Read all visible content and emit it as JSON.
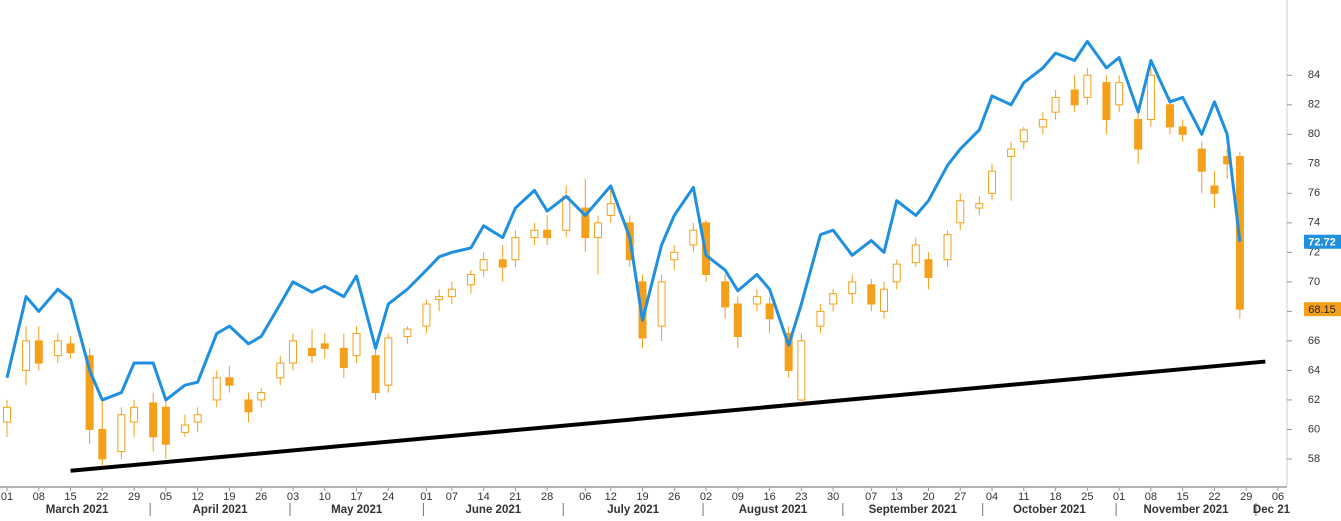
{
  "chart_data": {
    "type": "candlestick",
    "x": [
      "2021-03-01",
      "2021-03-04",
      "2021-03-08",
      "2021-03-11",
      "2021-03-15",
      "2021-03-18",
      "2021-03-22",
      "2021-03-25",
      "2021-03-29",
      "2021-04-01",
      "2021-04-05",
      "2021-04-08",
      "2021-04-12",
      "2021-04-15",
      "2021-04-19",
      "2021-04-22",
      "2021-04-26",
      "2021-04-29",
      "2021-05-03",
      "2021-05-06",
      "2021-05-10",
      "2021-05-13",
      "2021-05-17",
      "2021-05-20",
      "2021-05-24",
      "2021-05-27",
      "2021-06-01",
      "2021-06-03",
      "2021-06-07",
      "2021-06-10",
      "2021-06-14",
      "2021-06-17",
      "2021-06-21",
      "2021-06-24",
      "2021-06-28",
      "2021-07-01",
      "2021-07-06",
      "2021-07-08",
      "2021-07-12",
      "2021-07-15",
      "2021-07-19",
      "2021-07-22",
      "2021-07-26",
      "2021-07-29",
      "2021-08-02",
      "2021-08-05",
      "2021-08-09",
      "2021-08-12",
      "2021-08-16",
      "2021-08-19",
      "2021-08-23",
      "2021-08-26",
      "2021-08-30",
      "2021-09-02",
      "2021-09-07",
      "2021-09-09",
      "2021-09-13",
      "2021-09-16",
      "2021-09-20",
      "2021-09-23",
      "2021-09-27",
      "2021-09-30",
      "2021-10-04",
      "2021-10-07",
      "2021-10-11",
      "2021-10-14",
      "2021-10-18",
      "2021-10-21",
      "2021-10-25",
      "2021-10-28",
      "2021-11-01",
      "2021-11-04",
      "2021-11-08",
      "2021-11-11",
      "2021-11-15",
      "2021-11-18",
      "2021-11-22",
      "2021-11-24",
      "2021-11-26"
    ],
    "candles": {
      "color": "#f5a01a",
      "open": [
        60.5,
        64,
        66,
        65,
        65.8,
        65,
        60,
        58.5,
        60.5,
        61.8,
        61.5,
        59.8,
        60.5,
        62,
        63.5,
        62,
        62,
        63.5,
        64.5,
        65.5,
        65.8,
        65.5,
        65,
        65,
        63,
        66.3,
        67,
        68.8,
        69,
        69.8,
        70.8,
        71.5,
        71.5,
        73,
        73.5,
        73.5,
        75,
        73,
        74.5,
        74,
        70,
        67,
        71.5,
        72.5,
        74,
        70,
        68.5,
        68.5,
        68.5,
        66.5,
        62,
        67,
        68.5,
        69.2,
        69.8,
        68,
        70,
        71.3,
        71.5,
        71.5,
        74,
        75,
        76,
        78.5,
        79.5,
        80.5,
        81.5,
        83,
        82.5,
        83.5,
        82,
        81,
        81,
        82,
        80.5,
        79,
        76.5,
        78.5,
        78.5
      ],
      "high": [
        62,
        67,
        67,
        66.5,
        66.3,
        65.5,
        62,
        61.5,
        62,
        62.5,
        62,
        61,
        61.5,
        64,
        64.3,
        62.5,
        62.8,
        65,
        66.5,
        66.8,
        66.5,
        66.5,
        67,
        65.5,
        66.5,
        67,
        68.8,
        69.5,
        70,
        70.8,
        72,
        72.5,
        73.5,
        74,
        74.5,
        76.5,
        77,
        74.5,
        76.5,
        74.5,
        70.5,
        70.5,
        72.5,
        74,
        74.2,
        70.5,
        69,
        69.5,
        69,
        67,
        66.5,
        68.5,
        69.5,
        70.5,
        70.2,
        70,
        71.5,
        73,
        72,
        73.5,
        76,
        75.8,
        78,
        79.5,
        80.5,
        81.5,
        83,
        84,
        84.5,
        84,
        84,
        81.5,
        84.5,
        82.5,
        81,
        79.5,
        77.5,
        79,
        78.8
      ],
      "low": [
        59.5,
        63,
        64,
        64.5,
        64.8,
        59,
        57.5,
        58,
        59.5,
        58.5,
        58,
        59.5,
        59.8,
        61.5,
        62.5,
        60.5,
        61.5,
        63,
        64,
        64.5,
        64.8,
        63.5,
        64.5,
        62,
        62.5,
        65.8,
        66.5,
        68,
        68.5,
        69.2,
        70.3,
        70,
        71,
        72.5,
        72.5,
        73,
        72,
        70.5,
        74,
        71,
        65.5,
        66,
        70.8,
        72,
        70,
        67.5,
        65.5,
        68,
        66.5,
        63.5,
        61.8,
        66.5,
        68,
        68.5,
        68,
        67.5,
        69.5,
        71,
        69.5,
        71,
        73.5,
        74.5,
        75.5,
        75.5,
        79,
        80,
        81,
        81.5,
        82,
        80,
        81.5,
        78,
        80.5,
        80,
        79.5,
        76,
        75,
        77,
        67.5
      ],
      "close": [
        61.5,
        66,
        64.5,
        66,
        65.2,
        60,
        58,
        61,
        61.5,
        59.5,
        59,
        60.3,
        61,
        63.5,
        63,
        61.2,
        62.5,
        64.5,
        66,
        65,
        65.5,
        64.2,
        66.5,
        62.5,
        66.2,
        66.8,
        68.5,
        69,
        69.5,
        70.5,
        71.5,
        71,
        73,
        73.5,
        73,
        75.8,
        73,
        74,
        75.3,
        71.5,
        66.2,
        70,
        72,
        73.5,
        70.5,
        68.3,
        66.3,
        69,
        67.5,
        64,
        66,
        68,
        69.2,
        70,
        68.5,
        69.5,
        71.2,
        72.5,
        70.3,
        73.2,
        75.5,
        75.3,
        77.5,
        79,
        80.3,
        81,
        82.5,
        82,
        84,
        81,
        83.5,
        79,
        84,
        80.5,
        80,
        77.5,
        76,
        78,
        68.15
      ]
    },
    "line": {
      "color": "#1e8fe1",
      "values": [
        63.5,
        69,
        68,
        69.5,
        68.8,
        64,
        62,
        62.5,
        64.5,
        64.5,
        62,
        63,
        63.2,
        66.5,
        67,
        65.8,
        66.3,
        68.5,
        70,
        69.3,
        69.7,
        69,
        70.4,
        65.5,
        68.5,
        69.5,
        70.8,
        71.7,
        72,
        72.3,
        73.8,
        73,
        75,
        76.2,
        74.8,
        75.8,
        74.5,
        75.5,
        76.5,
        73,
        67.4,
        72.5,
        74.5,
        76.4,
        71.8,
        70.8,
        69.4,
        70.5,
        69.5,
        65.7,
        68.5,
        73.2,
        73.5,
        71.8,
        72.8,
        72,
        75.5,
        74.5,
        75.5,
        77.9,
        79,
        80.3,
        82.6,
        82,
        83.5,
        84.5,
        85.5,
        85,
        86.3,
        84.5,
        85.2,
        81.5,
        85,
        82.2,
        82.5,
        80,
        82.2,
        80,
        72.72
      ]
    },
    "trendline": {
      "color": "#000000",
      "x": [
        "2021-03-15",
        "2021-12-02"
      ],
      "values": [
        57.2,
        64.6
      ]
    },
    "xlim": [
      "2021-03-01",
      "2021-12-06"
    ],
    "xticks": [
      {
        "value": "2021-03-01",
        "label": "01"
      },
      {
        "value": "2021-03-08",
        "label": "08"
      },
      {
        "value": "2021-03-15",
        "label": "15"
      },
      {
        "value": "2021-03-22",
        "label": "22"
      },
      {
        "value": "2021-03-29",
        "label": "29"
      },
      {
        "value": "2021-04-05",
        "label": "05"
      },
      {
        "value": "2021-04-12",
        "label": "12"
      },
      {
        "value": "2021-04-19",
        "label": "19"
      },
      {
        "value": "2021-04-26",
        "label": "26"
      },
      {
        "value": "2021-05-03",
        "label": "03"
      },
      {
        "value": "2021-05-10",
        "label": "10"
      },
      {
        "value": "2021-05-17",
        "label": "17"
      },
      {
        "value": "2021-05-24",
        "label": "24"
      },
      {
        "value": "2021-06-01",
        "label": "01"
      },
      {
        "value": "2021-06-07",
        "label": "07"
      },
      {
        "value": "2021-06-14",
        "label": "14"
      },
      {
        "value": "2021-06-21",
        "label": "21"
      },
      {
        "value": "2021-06-28",
        "label": "28"
      },
      {
        "value": "2021-07-06",
        "label": "06"
      },
      {
        "value": "2021-07-12",
        "label": "12"
      },
      {
        "value": "2021-07-19",
        "label": "19"
      },
      {
        "value": "2021-07-26",
        "label": "26"
      },
      {
        "value": "2021-08-02",
        "label": "02"
      },
      {
        "value": "2021-08-09",
        "label": "09"
      },
      {
        "value": "2021-08-16",
        "label": "16"
      },
      {
        "value": "2021-08-23",
        "label": "23"
      },
      {
        "value": "2021-08-30",
        "label": "30"
      },
      {
        "value": "2021-09-07",
        "label": "07"
      },
      {
        "value": "2021-09-13",
        "label": "13"
      },
      {
        "value": "2021-09-20",
        "label": "20"
      },
      {
        "value": "2021-09-27",
        "label": "27"
      },
      {
        "value": "2021-10-04",
        "label": "04"
      },
      {
        "value": "2021-10-11",
        "label": "11"
      },
      {
        "value": "2021-10-18",
        "label": "18"
      },
      {
        "value": "2021-10-25",
        "label": "25"
      },
      {
        "value": "2021-11-01",
        "label": "01"
      },
      {
        "value": "2021-11-08",
        "label": "08"
      },
      {
        "value": "2021-11-15",
        "label": "15"
      },
      {
        "value": "2021-11-22",
        "label": "22"
      },
      {
        "value": "2021-11-29",
        "label": "29"
      },
      {
        "value": "2021-12-06",
        "label": "06"
      }
    ],
    "month_labels": [
      {
        "value": "2021-03",
        "label": "March 2021"
      },
      {
        "value": "2021-04",
        "label": "April 2021"
      },
      {
        "value": "2021-05",
        "label": "May 2021"
      },
      {
        "value": "2021-06",
        "label": "June 2021"
      },
      {
        "value": "2021-07",
        "label": "July 2021"
      },
      {
        "value": "2021-08",
        "label": "August 2021"
      },
      {
        "value": "2021-09",
        "label": "September 2021"
      },
      {
        "value": "2021-10",
        "label": "October 2021"
      },
      {
        "value": "2021-11",
        "label": "November 2021"
      },
      {
        "value": "2021-12",
        "label": "Dec 21"
      }
    ],
    "ylim": [
      56.1,
      89.1
    ],
    "yticks": [
      58,
      60,
      62,
      64,
      66,
      68,
      70,
      72,
      74,
      76,
      78,
      80,
      82,
      84
    ]
  }
}
